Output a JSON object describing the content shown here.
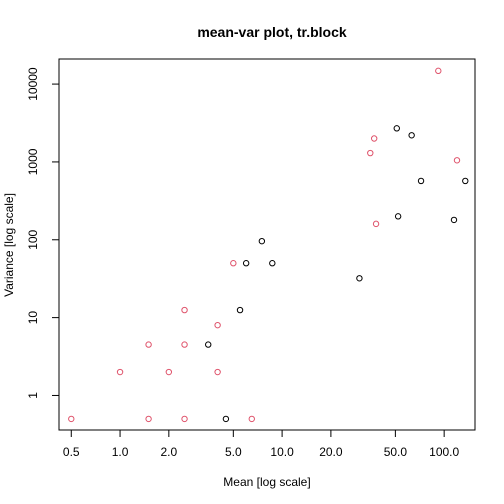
{
  "chart_data": {
    "type": "scatter",
    "title": "mean-var plot, tr.block",
    "xlabel": "Mean [log scale]",
    "ylabel": "Variance [log scale]",
    "x_log": true,
    "y_log": true,
    "xlim": [
      0.42,
      155
    ],
    "ylim": [
      0.36,
      21000
    ],
    "x_ticks": [
      0.5,
      1.0,
      2.0,
      5.0,
      10.0,
      20.0,
      50.0,
      100.0
    ],
    "x_tick_labels": [
      "0.5",
      "1.0",
      "2.0",
      "5.0",
      "10.0",
      "20.0",
      "50.0",
      "100.0"
    ],
    "y_ticks": [
      1,
      10,
      100,
      1000,
      10000
    ],
    "y_tick_labels": [
      "1",
      "10",
      "100",
      "1000",
      "10000"
    ],
    "grid": false,
    "legend": "none",
    "series": [
      {
        "color": "#000000",
        "marker": "open-circle",
        "points": [
          [
            4.5,
            0.5
          ],
          [
            3.5,
            4.5
          ],
          [
            5.5,
            12.5
          ],
          [
            6,
            50
          ],
          [
            7.5,
            96
          ],
          [
            8.7,
            50
          ],
          [
            30,
            32
          ],
          [
            52,
            200
          ],
          [
            51,
            2700
          ],
          [
            63,
            2200
          ],
          [
            72,
            570
          ],
          [
            115,
            180
          ],
          [
            135,
            570
          ]
        ]
      },
      {
        "color": "#df536b",
        "marker": "open-circle",
        "points": [
          [
            0.5,
            0.5
          ],
          [
            1.0,
            2.0
          ],
          [
            1.5,
            0.5
          ],
          [
            1.5,
            4.5
          ],
          [
            2.0,
            2.0
          ],
          [
            2.5,
            0.5
          ],
          [
            2.5,
            4.5
          ],
          [
            2.5,
            12.5
          ],
          [
            4.0,
            2.0
          ],
          [
            4.0,
            8.0
          ],
          [
            5.0,
            50
          ],
          [
            6.5,
            0.5
          ],
          [
            35,
            1300
          ],
          [
            37,
            2000
          ],
          [
            38,
            160
          ],
          [
            92,
            14800
          ],
          [
            120,
            1050
          ]
        ]
      }
    ]
  }
}
